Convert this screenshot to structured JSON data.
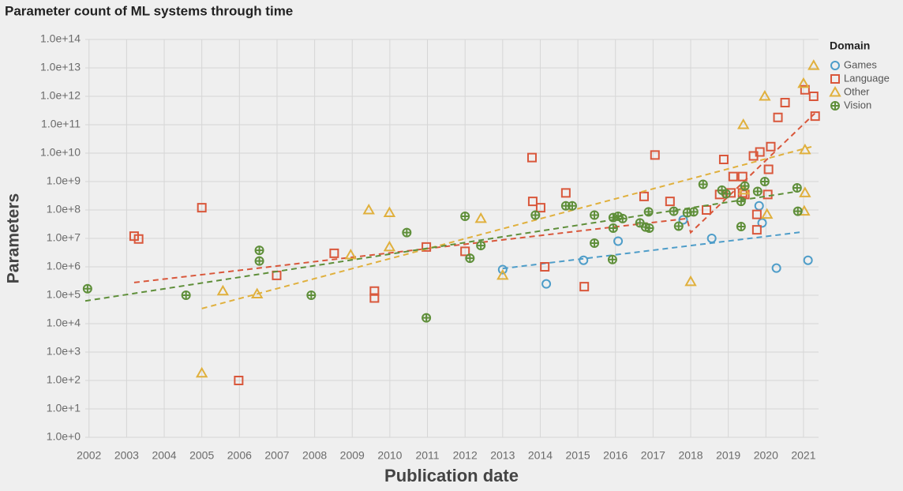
{
  "chart_data": {
    "type": "scatter",
    "title": "Parameter count of ML systems through time",
    "x_label": "Publication date",
    "y_label": "Parameters",
    "legend_title": "Domain",
    "legend_position": "right",
    "log_y": true,
    "grid": true,
    "xlim": [
      2001.9,
      2021.4
    ],
    "ylim": [
      1,
      100000000000000
    ],
    "xticks": [
      2002,
      2003,
      2004,
      2005,
      2006,
      2007,
      2008,
      2009,
      2010,
      2011,
      2012,
      2013,
      2014,
      2015,
      2016,
      2017,
      2018,
      2019,
      2020,
      2021
    ],
    "yticks": [
      {
        "value": 100000000000000,
        "label": "1.0e+14"
      },
      {
        "value": 10000000000000,
        "label": "1.0e+13"
      },
      {
        "value": 1000000000000,
        "label": "1.0e+12"
      },
      {
        "value": 100000000000,
        "label": "1.0e+11"
      },
      {
        "value": 10000000000,
        "label": "1.0e+10"
      },
      {
        "value": 1000000000,
        "label": "1.0e+9"
      },
      {
        "value": 100000000,
        "label": "1.0e+8"
      },
      {
        "value": 10000000,
        "label": "1.0e+7"
      },
      {
        "value": 1000000,
        "label": "1.0e+6"
      },
      {
        "value": 100000,
        "label": "1.0e+5"
      },
      {
        "value": 10000,
        "label": "1.0e+4"
      },
      {
        "value": 1000,
        "label": "1.0e+3"
      },
      {
        "value": 100,
        "label": "1.0e+2"
      },
      {
        "value": 10,
        "label": "1.0e+1"
      },
      {
        "value": 1,
        "label": "1.0e+0"
      }
    ],
    "series": [
      {
        "name": "Games",
        "color": "#4e9dc9",
        "marker": "circle",
        "x": [
          2013.0,
          2014.16,
          2015.15,
          2016.07,
          2017.8,
          2018.56,
          2019.82,
          2019.9,
          2020.28,
          2021.12
        ],
        "values": [
          800000,
          250000,
          1700000,
          8000000,
          45000000,
          10000000,
          140000000,
          35000000,
          900000,
          1700000
        ],
        "trend_x": [
          2013.0,
          2021.0
        ],
        "trend_values": [
          870000,
          17000000
        ]
      },
      {
        "name": "Language",
        "color": "#d9573b",
        "marker": "square",
        "x": [
          2003.2,
          2003.32,
          2005.0,
          2005.98,
          2006.99,
          2008.52,
          2009.59,
          2009.59,
          2010.97,
          2012.0,
          2013.78,
          2013.8,
          2014.01,
          2014.12,
          2014.68,
          2015.17,
          2016.76,
          2017.05,
          2017.45,
          2018.42,
          2018.88,
          2018.77,
          2019.07,
          2019.13,
          2019.38,
          2019.38,
          2019.44,
          2019.67,
          2019.76,
          2019.76,
          2019.84,
          2020.05,
          2020.07,
          2020.13,
          2020.32,
          2020.51,
          2021.04,
          2021.27,
          2021.31
        ],
        "values": [
          12000000,
          9500000,
          120000000,
          100,
          500000,
          3000000,
          140000,
          80000,
          5000000,
          3500000,
          7000000000,
          200000000,
          120000000,
          1000000,
          400000000,
          200000,
          300000000,
          8600000000,
          200000000,
          100000000,
          6000000000,
          350000000,
          400000000,
          1500000000,
          1500000000,
          400000000,
          350000000,
          8000000000,
          70000000,
          20000000,
          11000000000,
          350000000,
          2700000000,
          17000000000,
          180000000000,
          600000000000,
          1700000000000,
          1000000000000,
          200000000000
        ],
        "trend_x": [
          2003.2,
          2017.9,
          2018.0,
          2021.3
        ],
        "trend_values": [
          280000,
          50000000,
          16000000,
          250000000000
        ]
      },
      {
        "name": "Other",
        "color": "#e0b03d",
        "marker": "triangle",
        "x": [
          2005.0,
          2005.56,
          2006.47,
          2008.96,
          2009.44,
          2009.99,
          2009.99,
          2012.42,
          2013.0,
          2018.0,
          2019.4,
          2019.42,
          2019.97,
          2020.03,
          2021.0,
          2021.04,
          2021.04,
          2021.02,
          2021.27
        ],
        "values": [
          180,
          140000,
          110000,
          2600000,
          100000000,
          80000000,
          5000000,
          50000000,
          500000,
          300000,
          100000000000,
          500000000,
          1000000000000,
          70000000,
          2800000000000,
          13000000000,
          400000000,
          90000000,
          12000000000000
        ],
        "trend_x": [
          2005.0,
          2021.3
        ],
        "trend_values": [
          34000,
          18000000000
        ]
      },
      {
        "name": "Vision",
        "color": "#5f8f3a",
        "marker": "cross",
        "x": [
          2001.96,
          2004.58,
          2006.53,
          2006.53,
          2007.91,
          2010.45,
          2010.97,
          2012.0,
          2012.13,
          2012.42,
          2013.87,
          2014.68,
          2014.85,
          2015.44,
          2015.44,
          2015.92,
          2015.94,
          2015.94,
          2016.07,
          2016.19,
          2016.65,
          2016.8,
          2016.88,
          2016.9,
          2017.55,
          2017.68,
          2017.91,
          2018.08,
          2018.33,
          2018.83,
          2018.94,
          2019.34,
          2019.34,
          2019.44,
          2019.78,
          2019.97,
          2020.83,
          2020.85
        ],
        "values": [
          170000,
          100000,
          3800000,
          1600000,
          100000,
          16000000,
          16000,
          60000000,
          2000000,
          5600000,
          66000000,
          140000000,
          140000000,
          6800000,
          66000000,
          1800000,
          23000000,
          54000000,
          60000000,
          50000000,
          35000000,
          25000000,
          86000000,
          23000000,
          90000000,
          27000000,
          80000000,
          86000000,
          800000000,
          500000000,
          370000000,
          26000000,
          200000000,
          700000000,
          450000000,
          1000000000,
          600000000,
          90000000
        ],
        "trend_x": [
          2001.9,
          2020.8
        ],
        "trend_values": [
          63000,
          440000000
        ]
      }
    ]
  }
}
